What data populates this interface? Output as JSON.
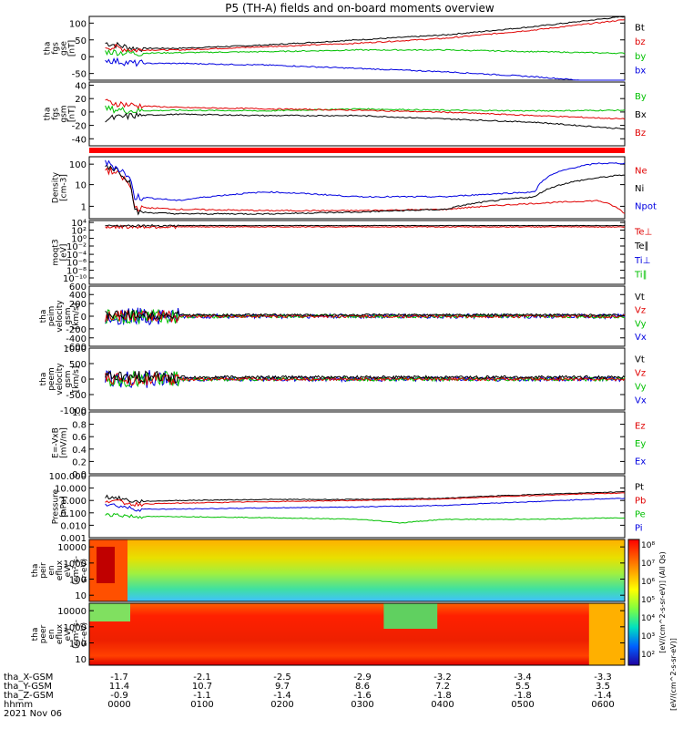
{
  "title": "P5 (TH-A) fields and on-board moments overview",
  "date_label": "2021 Nov 06",
  "panels": [
    {
      "id": "fgs-gse",
      "ylabel": [
        "tha",
        "fgs",
        "gse",
        "[nT]"
      ],
      "ticks": [
        "100",
        "50",
        "0",
        "-50"
      ],
      "legend": [
        {
          "label": "Bt",
          "color": "#000000"
        },
        {
          "label": "bz",
          "color": "#e00000"
        },
        {
          "label": "by",
          "color": "#00c000"
        },
        {
          "label": "bx",
          "color": "#0000e0"
        }
      ]
    },
    {
      "id": "fgs-gsm",
      "ylabel": [
        "tha",
        "fgs",
        "gsm",
        "[nT]"
      ],
      "ticks": [
        "40",
        "20",
        "0",
        "-20",
        "-40"
      ],
      "legend": [
        {
          "label": "By",
          "color": "#00c000"
        },
        {
          "label": "Bx",
          "color": "#000000"
        },
        {
          "label": "Bz",
          "color": "#e00000"
        }
      ]
    },
    {
      "id": "density",
      "ylabel": [
        "Density",
        "[cm-3]"
      ],
      "ticks": [
        "100",
        "10",
        "1"
      ],
      "legend": [
        {
          "label": "Ne",
          "color": "#e00000"
        },
        {
          "label": "Ni",
          "color": "#000000"
        },
        {
          "label": "Npot",
          "color": "#0000e0"
        }
      ]
    },
    {
      "id": "temp",
      "ylabel": [
        "moqt3",
        "[eV]"
      ],
      "ticks": [
        "10⁴",
        "10²",
        "10⁰",
        "10⁻²",
        "10⁻⁴",
        "10⁻⁶",
        "10⁻⁸",
        "10⁻¹⁰"
      ],
      "legend": [
        {
          "label": "Te⊥",
          "color": "#e00000"
        },
        {
          "label": "Te∥",
          "color": "#000000"
        },
        {
          "label": "Ti⊥",
          "color": "#0000e0"
        },
        {
          "label": "Ti∥",
          "color": "#00c000"
        }
      ]
    },
    {
      "id": "peim-vel",
      "ylabel": [
        "tha",
        "peim",
        "velocity",
        "gsm",
        "[km/s]"
      ],
      "ticks": [
        "600",
        "400",
        "200",
        "0",
        "-200",
        "-400",
        "-600"
      ],
      "legend": [
        {
          "label": "Vt",
          "color": "#000000"
        },
        {
          "label": "Vz",
          "color": "#e00000"
        },
        {
          "label": "Vy",
          "color": "#00c000"
        },
        {
          "label": "Vx",
          "color": "#0000e0"
        }
      ]
    },
    {
      "id": "peem-vel",
      "ylabel": [
        "tha",
        "peem",
        "velocity",
        "gsm",
        "[km/s]"
      ],
      "ticks": [
        "1000",
        "500",
        "0",
        "-500",
        "-1000"
      ],
      "legend": [
        {
          "label": "Vt",
          "color": "#000000"
        },
        {
          "label": "Vz",
          "color": "#e00000"
        },
        {
          "label": "Vy",
          "color": "#00c000"
        },
        {
          "label": "Vx",
          "color": "#0000e0"
        }
      ]
    },
    {
      "id": "efield",
      "ylabel": [
        "E=-VxB",
        "[mV/m]"
      ],
      "ticks": [
        "1.0",
        "0.8",
        "0.6",
        "0.4",
        "0.2",
        "0.0"
      ],
      "legend": [
        {
          "label": "Ez",
          "color": "#e00000"
        },
        {
          "label": "Ey",
          "color": "#00c000"
        },
        {
          "label": "Ex",
          "color": "#0000e0"
        }
      ]
    },
    {
      "id": "pressure",
      "ylabel": [
        "Pressure",
        "[nPa]"
      ],
      "ticks": [
        "100.000",
        "10.000",
        "1.000",
        "0.100",
        "0.010",
        "0.001"
      ],
      "legend": [
        {
          "label": "Pt",
          "color": "#000000"
        },
        {
          "label": "Pb",
          "color": "#e00000"
        },
        {
          "label": "Pe",
          "color": "#00c000"
        },
        {
          "label": "Pi",
          "color": "#0000e0"
        }
      ]
    },
    {
      "id": "peir-spec",
      "ylabel": [
        "tha",
        "peir",
        "en",
        "eflux",
        "eV/",
        "(cm²-s-",
        "sr-eV)"
      ],
      "ticks": [
        "10000",
        "1000",
        "100",
        "10"
      ]
    },
    {
      "id": "peer-spec",
      "ylabel": [
        "tha",
        "peer",
        "en",
        "eflux",
        "eV/",
        "(cm²-s-",
        "sr-eV)"
      ],
      "ticks": [
        "10000",
        "1000",
        "100",
        "10"
      ]
    }
  ],
  "colorbar": {
    "ticks": [
      "10⁸",
      "10⁷",
      "10⁶",
      "10⁵",
      "10⁴",
      "10³",
      "10²"
    ],
    "label_top": "[eV/(cm^2-s-sr-eV)] (All Qs)",
    "label_bottom": "[eV/(cm^2-s-sr-eV)]"
  },
  "time_axis": {
    "row_labels": [
      "tha_X-GSM",
      "tha_Y-GSM",
      "tha_Z-GSM",
      "hhmm"
    ],
    "columns": [
      {
        "x": "-1.7",
        "y": "11.4",
        "z": "-0.9",
        "t": "0000"
      },
      {
        "x": "-2.1",
        "y": "10.7",
        "z": "-1.1",
        "t": "0100"
      },
      {
        "x": "-2.5",
        "y": "9.7",
        "z": "-1.4",
        "t": "0200"
      },
      {
        "x": "-2.9",
        "y": "8.6",
        "z": "-1.6",
        "t": "0300"
      },
      {
        "x": "-3.2",
        "y": "7.2",
        "z": "-1.8",
        "t": "0400"
      },
      {
        "x": "-3.4",
        "y": "5.5",
        "z": "-1.8",
        "t": "0500"
      },
      {
        "x": "-3.3",
        "y": "3.5",
        "z": "-1.4",
        "t": "0600"
      }
    ]
  },
  "chart_data": {
    "type": "line",
    "title": "P5 (TH-A) fields and on-board moments overview",
    "x_range_hours": [
      0,
      6
    ],
    "x_ticks": [
      "0000",
      "0100",
      "0200",
      "0300",
      "0400",
      "0500",
      "0600"
    ],
    "series": [
      {
        "panel": "fgs-gse",
        "name": "Bt",
        "x": [
          0.2,
          0.5,
          1,
          2,
          3,
          4,
          5,
          6
        ],
        "y": [
          40,
          25,
          25,
          35,
          50,
          65,
          90,
          120
        ]
      },
      {
        "panel": "fgs-gse",
        "name": "bz",
        "x": [
          0.2,
          0.5,
          1,
          2,
          3,
          4,
          5,
          6
        ],
        "y": [
          30,
          20,
          20,
          30,
          40,
          55,
          80,
          110
        ]
      },
      {
        "panel": "fgs-gse",
        "name": "by",
        "x": [
          0.2,
          0.5,
          1,
          2,
          3,
          4,
          5,
          6
        ],
        "y": [
          15,
          10,
          12,
          15,
          20,
          20,
          15,
          10
        ]
      },
      {
        "panel": "fgs-gse",
        "name": "bx",
        "x": [
          0.2,
          0.5,
          1,
          2,
          3,
          4,
          5,
          6
        ],
        "y": [
          -10,
          -20,
          -20,
          -25,
          -35,
          -45,
          -60,
          -80
        ]
      },
      {
        "panel": "fgs-gsm",
        "name": "By",
        "x": [
          0.2,
          0.5,
          1,
          2,
          3,
          4,
          5,
          6
        ],
        "y": [
          5,
          2,
          3,
          2,
          5,
          3,
          2,
          3
        ]
      },
      {
        "panel": "fgs-gsm",
        "name": "Bx",
        "x": [
          0.2,
          0.5,
          1,
          2,
          3,
          4,
          5,
          6
        ],
        "y": [
          -10,
          -5,
          -3,
          -5,
          -5,
          -10,
          -15,
          -25
        ]
      },
      {
        "panel": "fgs-gsm",
        "name": "Bz",
        "x": [
          0.2,
          0.5,
          1,
          2,
          3,
          4,
          5,
          6
        ],
        "y": [
          15,
          10,
          7,
          5,
          3,
          0,
          -5,
          -10
        ]
      },
      {
        "panel": "density",
        "name": "Ne",
        "x": [
          0.2,
          0.5,
          1,
          2,
          3,
          4,
          5,
          5.7,
          6
        ],
        "y": [
          50,
          1,
          0.8,
          0.7,
          0.7,
          0.8,
          1.5,
          2,
          0.5
        ]
      },
      {
        "panel": "density",
        "name": "Ni",
        "x": [
          0.2,
          0.5,
          1,
          2,
          3,
          4,
          5,
          6
        ],
        "y": [
          80,
          0.6,
          0.5,
          0.5,
          0.6,
          0.8,
          3,
          30
        ]
      },
      {
        "panel": "density",
        "name": "Npot",
        "x": [
          0.2,
          0.5,
          1,
          2,
          3,
          4,
          5,
          5.7,
          6
        ],
        "y": [
          100,
          3,
          2,
          5,
          3,
          3,
          5,
          100,
          100
        ]
      },
      {
        "panel": "pressure",
        "name": "Pt",
        "x": [
          0.2,
          0.5,
          1,
          2,
          3,
          4,
          5,
          6
        ],
        "y": [
          2,
          0.8,
          1.0,
          1.2,
          1.2,
          1.5,
          3,
          5
        ]
      },
      {
        "panel": "pressure",
        "name": "Pb",
        "x": [
          0.2,
          0.5,
          1,
          2,
          3,
          4,
          5,
          6
        ],
        "y": [
          1,
          0.5,
          0.6,
          0.8,
          1.0,
          1.3,
          2.5,
          4
        ]
      },
      {
        "panel": "pressure",
        "name": "Pe",
        "x": [
          0.2,
          0.5,
          1,
          2,
          3,
          3.5,
          4,
          5,
          6
        ],
        "y": [
          0.08,
          0.05,
          0.05,
          0.04,
          0.03,
          0.015,
          0.03,
          0.03,
          0.04
        ]
      },
      {
        "panel": "pressure",
        "name": "Pi",
        "x": [
          0.2,
          0.5,
          1,
          2,
          3,
          4,
          5,
          6
        ],
        "y": [
          0.5,
          0.2,
          0.2,
          0.25,
          0.3,
          0.4,
          0.8,
          1.5
        ]
      }
    ]
  }
}
